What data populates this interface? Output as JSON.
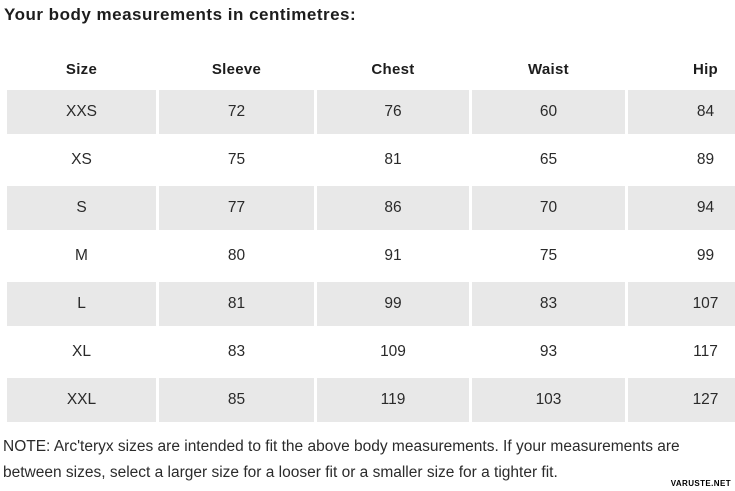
{
  "title": "Your body measurements in centimetres:",
  "table": {
    "columns": [
      "Size",
      "Sleeve",
      "Chest",
      "Waist",
      "Hip"
    ],
    "rows": [
      {
        "label": "XXS",
        "values": [
          "72",
          "76",
          "60",
          "84"
        ]
      },
      {
        "label": "XS",
        "values": [
          "75",
          "81",
          "65",
          "89"
        ]
      },
      {
        "label": "S",
        "values": [
          "77",
          "86",
          "70",
          "94"
        ]
      },
      {
        "label": "M",
        "values": [
          "80",
          "91",
          "75",
          "99"
        ]
      },
      {
        "label": "L",
        "values": [
          "81",
          "99",
          "83",
          "107"
        ]
      },
      {
        "label": "XL",
        "values": [
          "83",
          "109",
          "93",
          "117"
        ]
      },
      {
        "label": "XXL",
        "values": [
          "85",
          "119",
          "103",
          "127"
        ]
      }
    ]
  },
  "note": {
    "line1": "NOTE: Arc'teryx sizes are intended to fit the above body measurements. If your measurements are",
    "line2": "between sizes, select a larger size for a looser fit or a smaller size for a tighter fit."
  },
  "watermark": "VARUSTE.NET",
  "colors": {
    "row_stripe": "#e8e8e8",
    "text": "#2a2a2a"
  }
}
